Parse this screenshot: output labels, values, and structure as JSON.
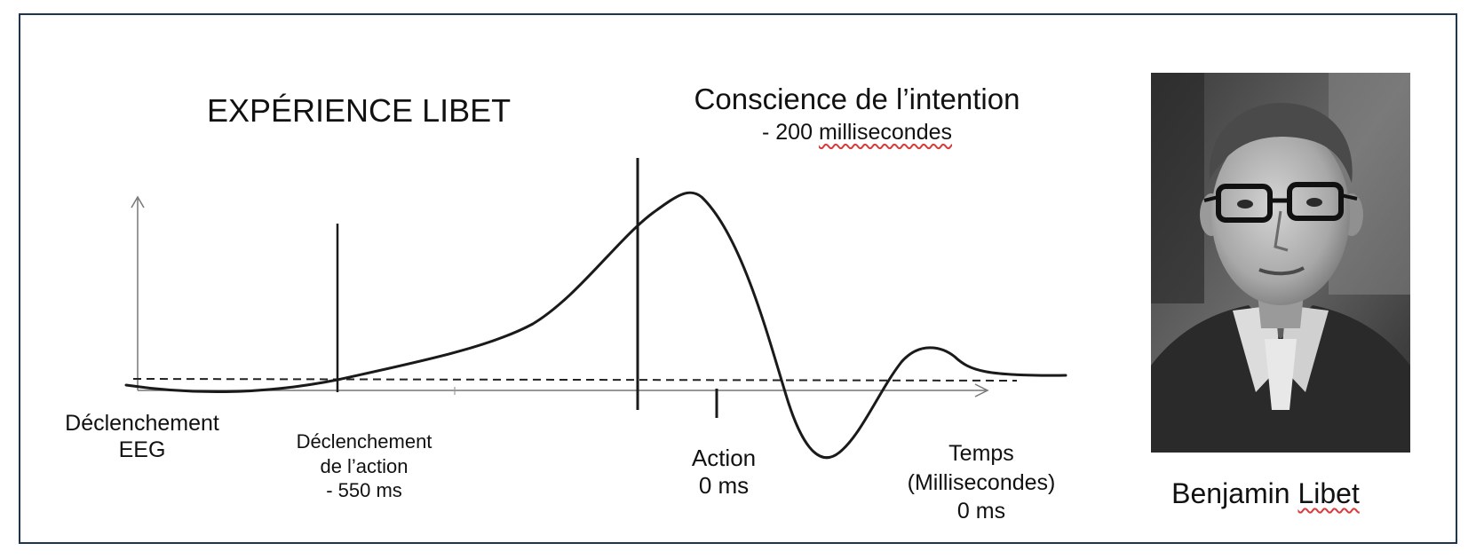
{
  "title": "EXPÉRIENCE LIBET",
  "consciousness": {
    "label": "Conscience de l’intention",
    "prefix": "- 200 ",
    "value_word": "millisecondes"
  },
  "labels": {
    "eeg_line1": "Déclenchement",
    "eeg_line2": "EEG",
    "action_trigger_line1": "Déclenchement",
    "action_trigger_line2": "de l’action",
    "action_trigger_line3": "- 550 ms",
    "action_line1": "Action",
    "action_line2": "0 ms",
    "time_line1": "Temps",
    "time_line2": "(Millisecondes)",
    "time_line3": "0 ms"
  },
  "portrait": {
    "first_name": "Benjamin ",
    "last_name": "Libet",
    "description": "black-and-white portrait"
  },
  "colors": {
    "frame": "#1c3550",
    "curve": "#1a1a1a",
    "spellcheck": "#d93a3a"
  }
}
